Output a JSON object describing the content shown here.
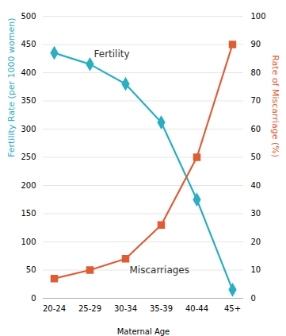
{
  "chart_data": {
    "type": "line",
    "xlabel": "Maternal Age",
    "ylabel": "Fertility Rate (per 1000 women)",
    "y2label": "Rate of Miscarriage (%)",
    "categories": [
      "20-24",
      "25-29",
      "30-34",
      "35-39",
      "40-44",
      "45+"
    ],
    "series": [
      {
        "name": "Fertility",
        "color": "#29aec2",
        "marker": "diamond",
        "values": [
          435,
          415,
          380,
          312,
          175,
          15
        ]
      },
      {
        "name": "Miscarriages",
        "color": "#e05c33",
        "marker": "square",
        "axis": "y2",
        "values": [
          7,
          10,
          14,
          26,
          50,
          90
        ]
      }
    ],
    "ylim": [
      0,
      500
    ],
    "yticks": [
      0,
      50,
      100,
      150,
      200,
      250,
      300,
      350,
      400,
      450,
      500
    ],
    "y2lim": [
      0,
      100
    ],
    "y2ticks": [
      0,
      10,
      20,
      30,
      40,
      50,
      60,
      70,
      80,
      90,
      100
    ],
    "grid": true
  }
}
